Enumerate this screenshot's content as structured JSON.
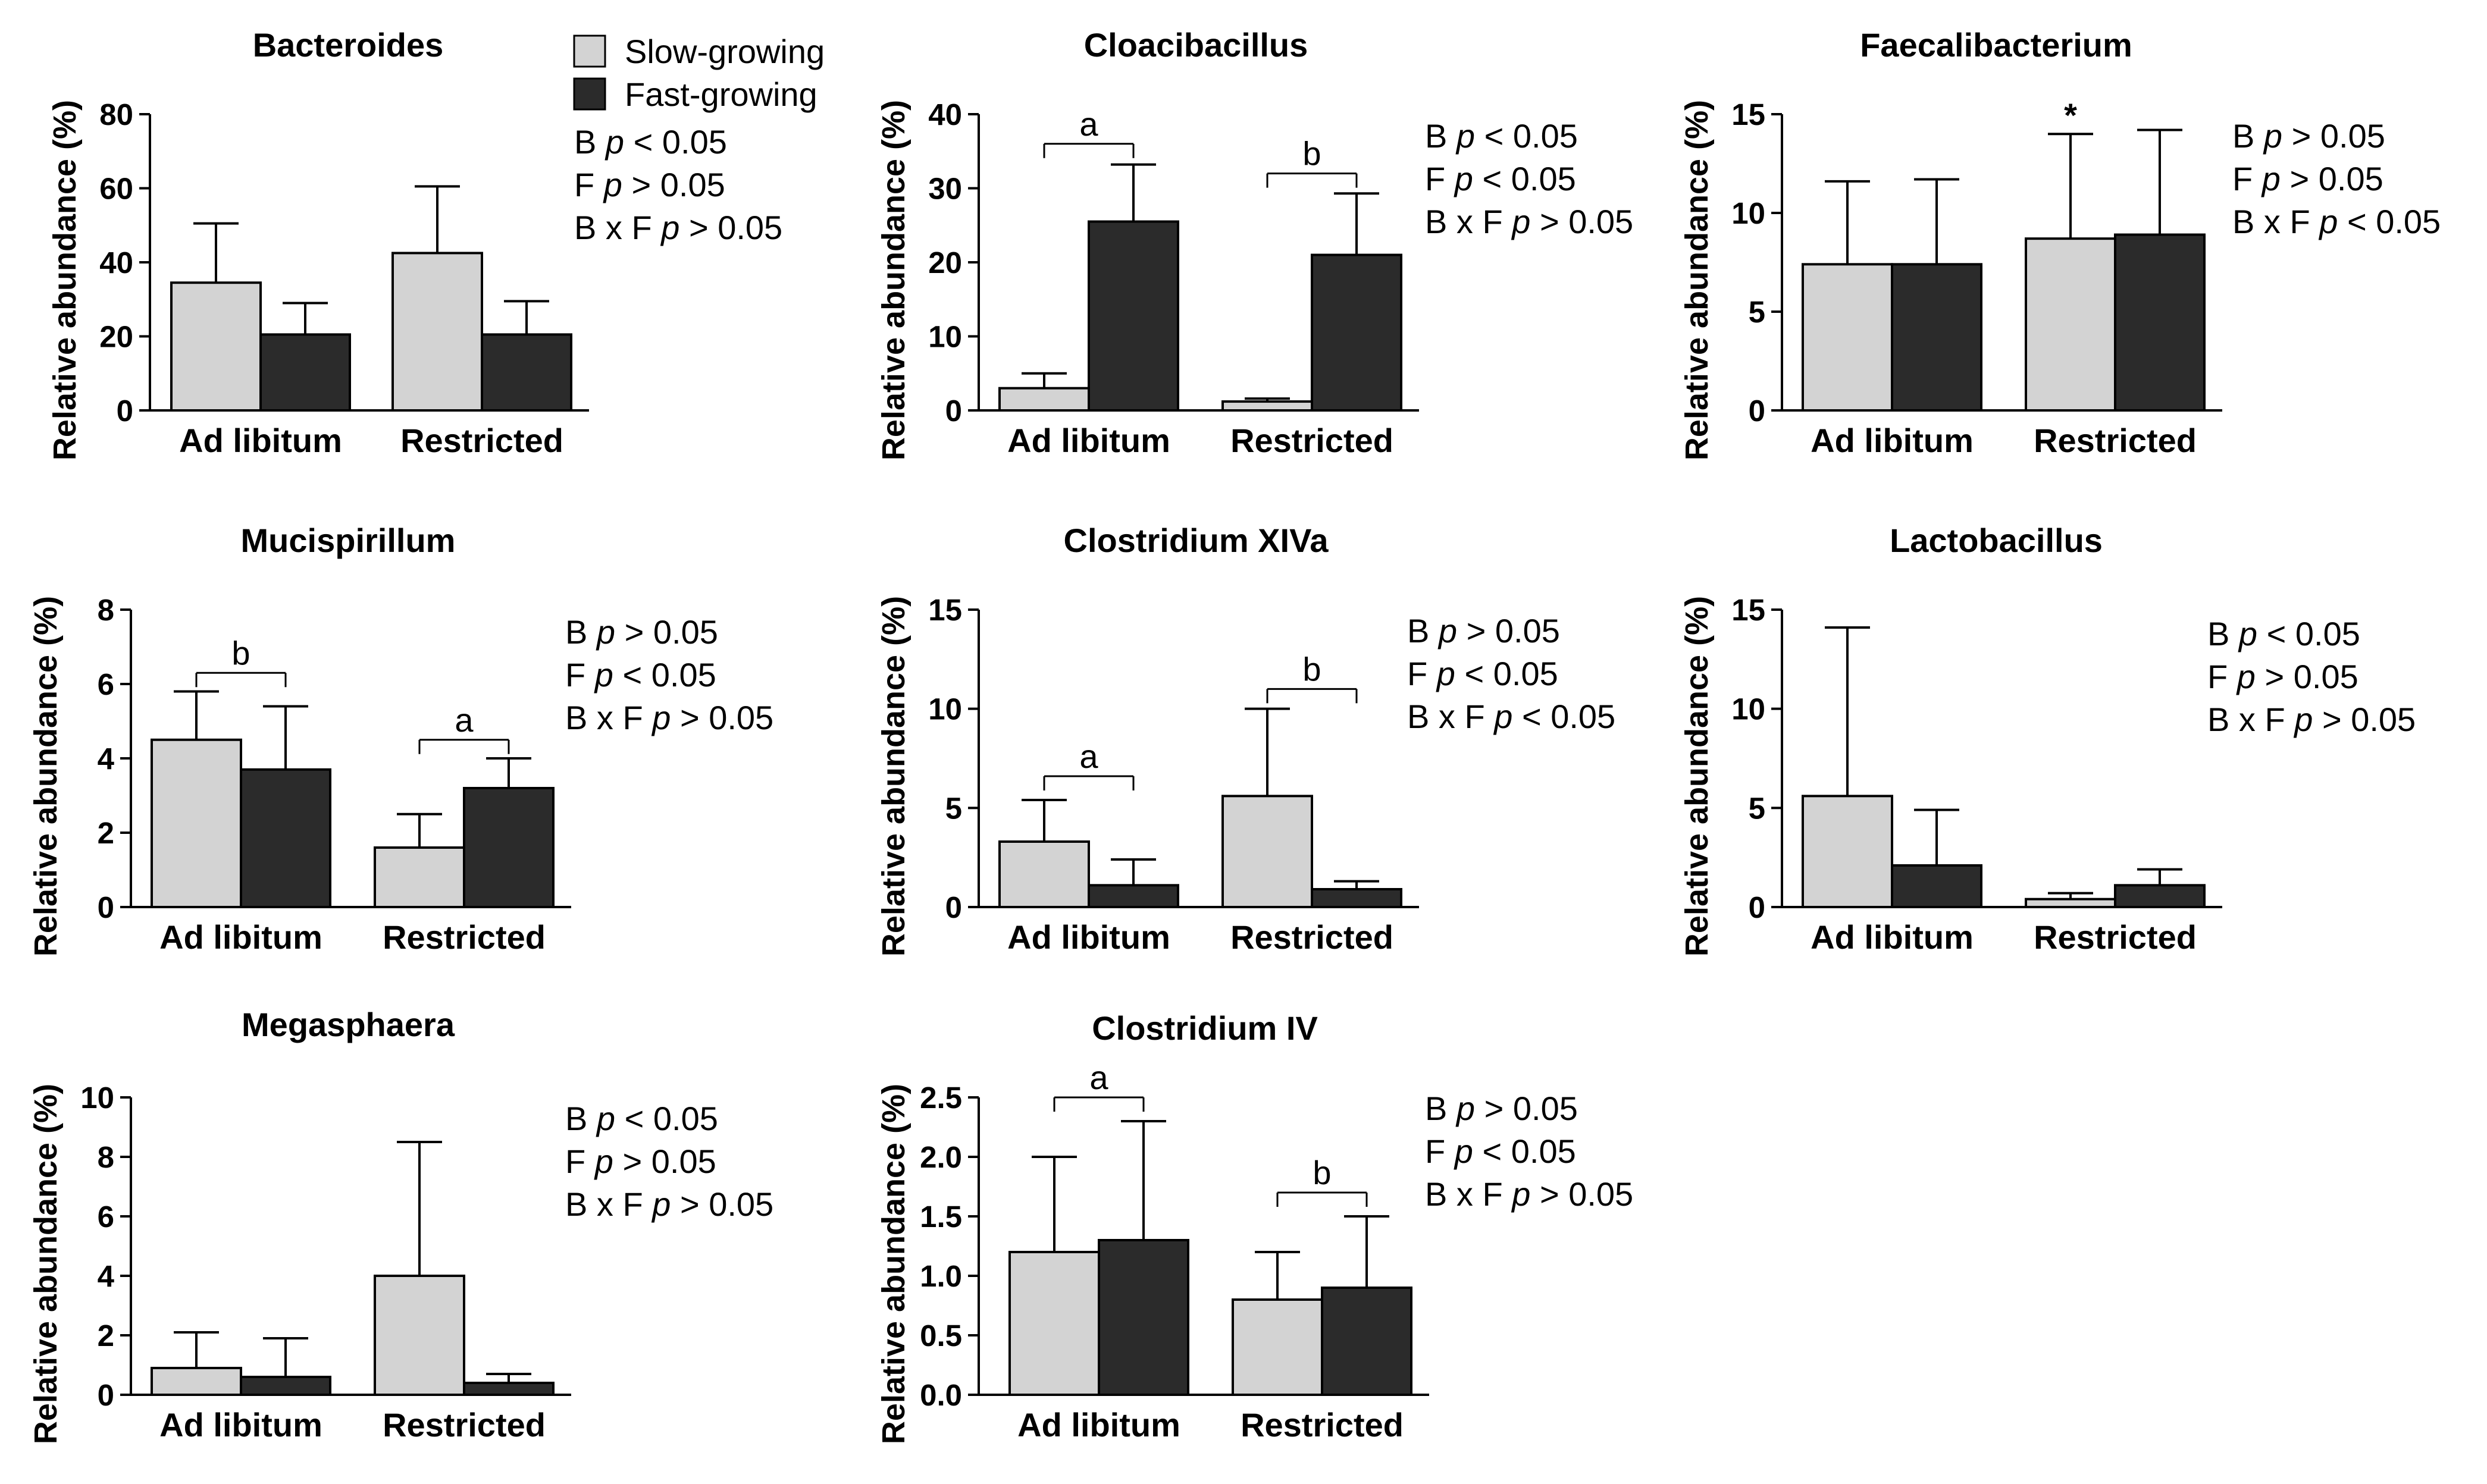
{
  "legend": [
    {
      "label": "Slow-growing",
      "color": "#d3d3d3"
    },
    {
      "label": "Fast-growing",
      "color": "#2b2b2b"
    }
  ],
  "colors": {
    "slow": "#d3d3d3",
    "fast": "#2b2b2b",
    "axis": "#000000"
  },
  "chart_data": [
    {
      "type": "bar",
      "title": "Bacteroides",
      "ylabel": "Relative abundance (%)",
      "categories": [
        "Ad libitum",
        "Restricted"
      ],
      "ylim": [
        0,
        80
      ],
      "yticks": [
        0,
        20,
        40,
        60,
        80
      ],
      "series": [
        {
          "name": "Slow-growing",
          "values": [
            34.5,
            42.5
          ],
          "errors": [
            16,
            18
          ]
        },
        {
          "name": "Fast-growing",
          "values": [
            20.5,
            20.5
          ],
          "errors": [
            8.5,
            9
          ]
        }
      ],
      "stats": [
        "B |p| < 0.05",
        "F |p| > 0.05",
        "B x F |p| > 0.05"
      ],
      "annotations": []
    },
    {
      "type": "bar",
      "title": "Cloacibacillus",
      "ylabel": "Relative abundance (%)",
      "categories": [
        "Ad libitum",
        "Restricted"
      ],
      "ylim": [
        0,
        40
      ],
      "yticks": [
        0,
        10,
        20,
        30,
        40
      ],
      "series": [
        {
          "name": "Slow-growing",
          "values": [
            3,
            1.2
          ],
          "errors": [
            2,
            0.4
          ]
        },
        {
          "name": "Fast-growing",
          "values": [
            25.5,
            21
          ],
          "errors": [
            7.7,
            8.3
          ]
        }
      ],
      "stats": [
        "B |p| < 0.05",
        "F |p| < 0.05",
        "B x F |p| > 0.05"
      ],
      "annotations": [
        {
          "group": 0,
          "label": "a",
          "y": 36
        },
        {
          "group": 1,
          "label": "b",
          "y": 32
        }
      ]
    },
    {
      "type": "bar",
      "title": "Faecalibacterium",
      "ylabel": "Relative abundance (%)",
      "categories": [
        "Ad libitum",
        "Restricted"
      ],
      "ylim": [
        0,
        15
      ],
      "yticks": [
        0,
        5,
        10,
        15
      ],
      "series": [
        {
          "name": "Slow-growing",
          "values": [
            7.4,
            8.7
          ],
          "errors": [
            4.2,
            5.3
          ]
        },
        {
          "name": "Fast-growing",
          "values": [
            7.4,
            8.9
          ],
          "errors": [
            4.3,
            5.3
          ]
        }
      ],
      "stats": [
        "B |p| > 0.05",
        "F |p| > 0.05",
        "B x F |p| < 0.05"
      ],
      "annotations": [
        {
          "type": "star",
          "group": 1,
          "series": 0,
          "label": "*"
        }
      ]
    },
    {
      "type": "bar",
      "title": "Mucispirillum",
      "ylabel": "Relative abundance (%)",
      "categories": [
        "Ad libitum",
        "Restricted"
      ],
      "ylim": [
        0,
        8
      ],
      "yticks": [
        0,
        2,
        4,
        6,
        8
      ],
      "series": [
        {
          "name": "Slow-growing",
          "values": [
            4.5,
            1.6
          ],
          "errors": [
            1.3,
            0.9
          ]
        },
        {
          "name": "Fast-growing",
          "values": [
            3.7,
            3.2
          ],
          "errors": [
            1.7,
            0.8
          ]
        }
      ],
      "stats": [
        "B |p| > 0.05",
        "F |p| < 0.05",
        "B x F |p| > 0.05"
      ],
      "annotations": [
        {
          "group": 0,
          "label": "b",
          "y": 6.3
        },
        {
          "group": 1,
          "label": "a",
          "y": 4.5
        }
      ]
    },
    {
      "type": "bar",
      "title": "Clostridium XIVa",
      "ylabel": "Relative abundance (%)",
      "categories": [
        "Ad libitum",
        "Restricted"
      ],
      "ylim": [
        0,
        15
      ],
      "yticks": [
        0,
        5,
        10,
        15
      ],
      "series": [
        {
          "name": "Slow-growing",
          "values": [
            3.3,
            5.6
          ],
          "errors": [
            2.1,
            4.4
          ]
        },
        {
          "name": "Fast-growing",
          "values": [
            1.1,
            0.9
          ],
          "errors": [
            1.3,
            0.4
          ]
        }
      ],
      "stats": [
        "B |p| > 0.05",
        "F |p| < 0.05",
        "B x F |p| < 0.05"
      ],
      "annotations": [
        {
          "group": 0,
          "label": "a",
          "y": 6.6
        },
        {
          "group": 1,
          "label": "b",
          "y": 11
        }
      ]
    },
    {
      "type": "bar",
      "title": "Lactobacillus",
      "ylabel": "Relative abundance (%)",
      "categories": [
        "Ad libitum",
        "Restricted"
      ],
      "ylim": [
        0,
        15
      ],
      "yticks": [
        0,
        5,
        10,
        15
      ],
      "series": [
        {
          "name": "Slow-growing",
          "values": [
            5.6,
            0.4
          ],
          "errors": [
            8.5,
            0.3
          ]
        },
        {
          "name": "Fast-growing",
          "values": [
            2.1,
            1.1
          ],
          "errors": [
            2.8,
            0.8
          ]
        }
      ],
      "stats": [
        "B |p| < 0.05",
        "F |p| > 0.05",
        "B x F |p| > 0.05"
      ],
      "annotations": []
    },
    {
      "type": "bar",
      "title": "Megasphaera",
      "ylabel": "Relative abundance (%)",
      "categories": [
        "Ad libitum",
        "Restricted"
      ],
      "ylim": [
        0,
        10
      ],
      "yticks": [
        0,
        2,
        4,
        6,
        8,
        10
      ],
      "series": [
        {
          "name": "Slow-growing",
          "values": [
            0.9,
            4
          ],
          "errors": [
            1.2,
            4.5
          ]
        },
        {
          "name": "Fast-growing",
          "values": [
            0.6,
            0.4
          ],
          "errors": [
            1.3,
            0.3
          ]
        }
      ],
      "stats": [
        "B |p| < 0.05",
        "F |p| > 0.05",
        "B x F |p| > 0.05"
      ],
      "annotations": []
    },
    {
      "type": "bar",
      "title": "Clostridium IV",
      "ylabel": "Relative abundance (%)",
      "categories": [
        "Ad libitum",
        "Restricted"
      ],
      "ylim": [
        0,
        2.5
      ],
      "yticks": [
        0.0,
        0.5,
        1.0,
        1.5,
        2.0,
        2.5
      ],
      "ytick_labels": [
        "0.0",
        "0.5",
        "1.0",
        "1.5",
        "2.0",
        "2.5"
      ],
      "series": [
        {
          "name": "Slow-growing",
          "values": [
            1.2,
            0.8
          ],
          "errors": [
            0.8,
            0.4
          ]
        },
        {
          "name": "Fast-growing",
          "values": [
            1.3,
            0.9
          ],
          "errors": [
            1.0,
            0.6
          ]
        }
      ],
      "stats": [
        "B |p| > 0.05",
        "F |p| < 0.05",
        "B x F |p| > 0.05"
      ],
      "annotations": [
        {
          "group": 0,
          "label": "a",
          "y": 2.5
        },
        {
          "group": 1,
          "label": "b",
          "y": 1.7
        }
      ]
    }
  ]
}
